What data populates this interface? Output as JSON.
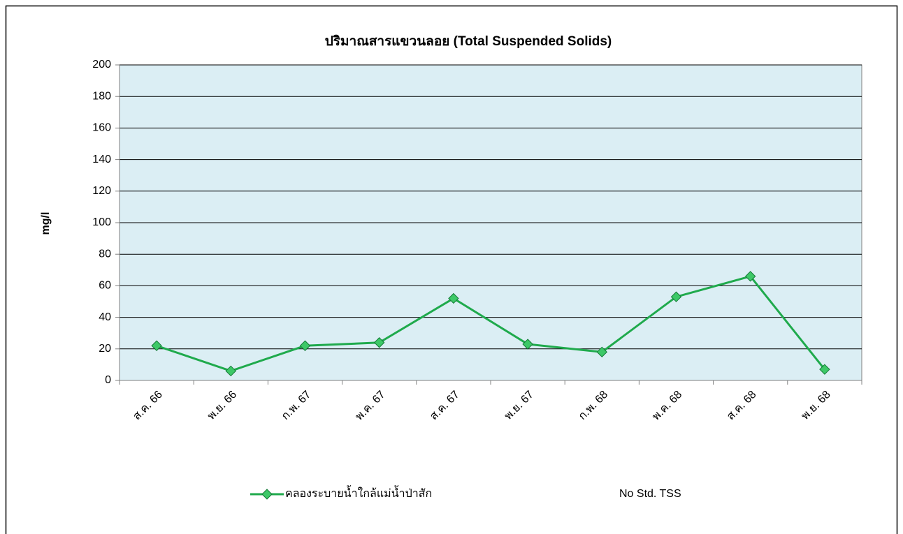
{
  "chart_data": {
    "type": "line",
    "title": "ปริมาณสารแขวนลอย (Total Suspended Solids)",
    "y_label": "mg/l",
    "categories": [
      "ส.ค. 66",
      "พ.ย. 66",
      "ก.พ. 67",
      "พ.ค. 67",
      "ส.ค. 67",
      "พ.ย. 67",
      "ก.พ. 68",
      "พ.ค. 68",
      "ส.ค. 68",
      "พ.ย. 68"
    ],
    "series": [
      {
        "name": "คลองระบายน้ำใกล้แม่น้ำป่าสัก",
        "color": "#1faa4c",
        "values": [
          22,
          6,
          22,
          24,
          52,
          23,
          18,
          53,
          66,
          7
        ]
      },
      {
        "name": "No Std. TSS",
        "values": [
          null,
          null,
          null,
          null,
          null,
          null,
          null,
          null,
          null,
          null
        ]
      }
    ],
    "ylim": [
      0,
      200
    ],
    "yticks": [
      0,
      20,
      40,
      60,
      80,
      100,
      120,
      140,
      160,
      180,
      200
    ],
    "grid": true,
    "legend": "bottom",
    "plot_background": "#dbeef4"
  }
}
